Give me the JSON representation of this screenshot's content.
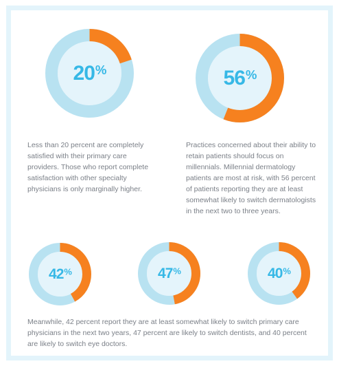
{
  "colors": {
    "accent": "#f6811f",
    "track": "#b8e2f1",
    "inner": "#e4f4fb",
    "label": "#36b8e6",
    "text": "#7a7f87"
  },
  "chart_data": [
    {
      "type": "pie",
      "values": [
        20,
        80
      ],
      "label": "20",
      "unit": "%",
      "caption": "Less than 20 percent are completely satisfied with their primary care providers. Those who report complete satisfaction with other specialty physicians is only marginally higher."
    },
    {
      "type": "pie",
      "values": [
        56,
        44
      ],
      "label": "56",
      "unit": "%",
      "caption": "Practices concerned about their ability to retain patients should focus on millennials. Millennial dermatology patients are most at risk, with 56 percent of patients reporting they are at least somewhat likely to switch dermatologists in the next two to three years."
    },
    {
      "type": "pie",
      "values": [
        42,
        58
      ],
      "label": "42",
      "unit": "%"
    },
    {
      "type": "pie",
      "values": [
        47,
        53
      ],
      "label": "47",
      "unit": "%"
    },
    {
      "type": "pie",
      "values": [
        40,
        60
      ],
      "label": "40",
      "unit": "%"
    }
  ],
  "bottom_caption": "Meanwhile, 42 percent report they are at least somewhat likely to switch primary care physicians in the next two years, 47 percent are likely to switch dentists, and 40 percent are likely to switch eye doctors."
}
